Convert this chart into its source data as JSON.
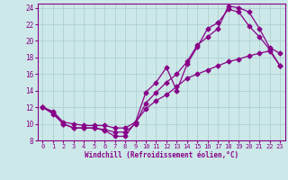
{
  "xlabel": "Windchill (Refroidissement éolien,°C)",
  "bg_color": "#cce8e8",
  "line_color": "#880088",
  "grid_color": "#aacccc",
  "xlim": [
    -0.5,
    23.5
  ],
  "ylim": [
    8,
    24.5
  ],
  "yticks": [
    8,
    10,
    12,
    14,
    16,
    18,
    20,
    22,
    24
  ],
  "xticks": [
    0,
    1,
    2,
    3,
    4,
    5,
    6,
    7,
    8,
    9,
    10,
    11,
    12,
    13,
    14,
    15,
    16,
    17,
    18,
    19,
    20,
    21,
    22,
    23
  ],
  "curve1_x": [
    0,
    1,
    2,
    3,
    4,
    5,
    6,
    7,
    8,
    9,
    10,
    11,
    12,
    13,
    14,
    15,
    16,
    17,
    18,
    19,
    20,
    21,
    22,
    23
  ],
  "curve1_y": [
    12.0,
    11.2,
    10.0,
    9.5,
    9.5,
    9.5,
    9.2,
    8.5,
    8.5,
    10.2,
    13.8,
    15.0,
    16.8,
    14.0,
    17.2,
    19.3,
    21.5,
    22.2,
    23.8,
    23.5,
    21.8,
    20.5,
    19.0,
    17.0
  ],
  "curve2_x": [
    0,
    1,
    2,
    3,
    4,
    5,
    6,
    7,
    8,
    9,
    10,
    11,
    12,
    13,
    14,
    15,
    16,
    17,
    18,
    19,
    20,
    21,
    22,
    23
  ],
  "curve2_y": [
    12.0,
    11.4,
    10.0,
    9.5,
    9.5,
    9.5,
    9.3,
    9.0,
    9.0,
    10.0,
    12.5,
    13.8,
    15.0,
    16.0,
    17.5,
    19.5,
    20.5,
    21.5,
    24.2,
    24.0,
    23.5,
    21.5,
    19.2,
    18.5
  ],
  "curve3_x": [
    0,
    1,
    2,
    3,
    4,
    5,
    6,
    7,
    8,
    9,
    10,
    11,
    12,
    13,
    14,
    15,
    16,
    17,
    18,
    19,
    20,
    21,
    22,
    23
  ],
  "curve3_y": [
    12.0,
    11.5,
    10.2,
    10.0,
    9.8,
    9.8,
    9.8,
    9.5,
    9.5,
    10.2,
    11.8,
    12.8,
    13.5,
    14.5,
    15.5,
    16.0,
    16.5,
    17.0,
    17.5,
    17.8,
    18.2,
    18.5,
    18.8,
    17.0
  ]
}
